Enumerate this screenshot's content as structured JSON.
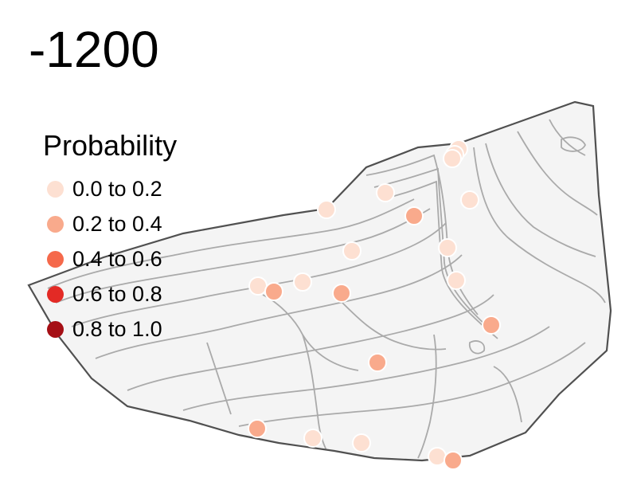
{
  "title": "-1200",
  "legend": {
    "title": "Probability",
    "items": [
      {
        "label": "0.0 to 0.2",
        "color": "#fde0d2"
      },
      {
        "label": "0.2 to 0.4",
        "color": "#f9aa8c"
      },
      {
        "label": "0.4 to 0.6",
        "color": "#f5694b"
      },
      {
        "label": "0.6 to 0.8",
        "color": "#e32a25"
      },
      {
        "label": "0.8 to 1.0",
        "color": "#a50f15"
      }
    ]
  },
  "colors": {
    "land_fill": "#f4f4f4",
    "outline": "#505050",
    "contour": "#aaaaaa",
    "point_stroke": "#ffffff"
  }
}
